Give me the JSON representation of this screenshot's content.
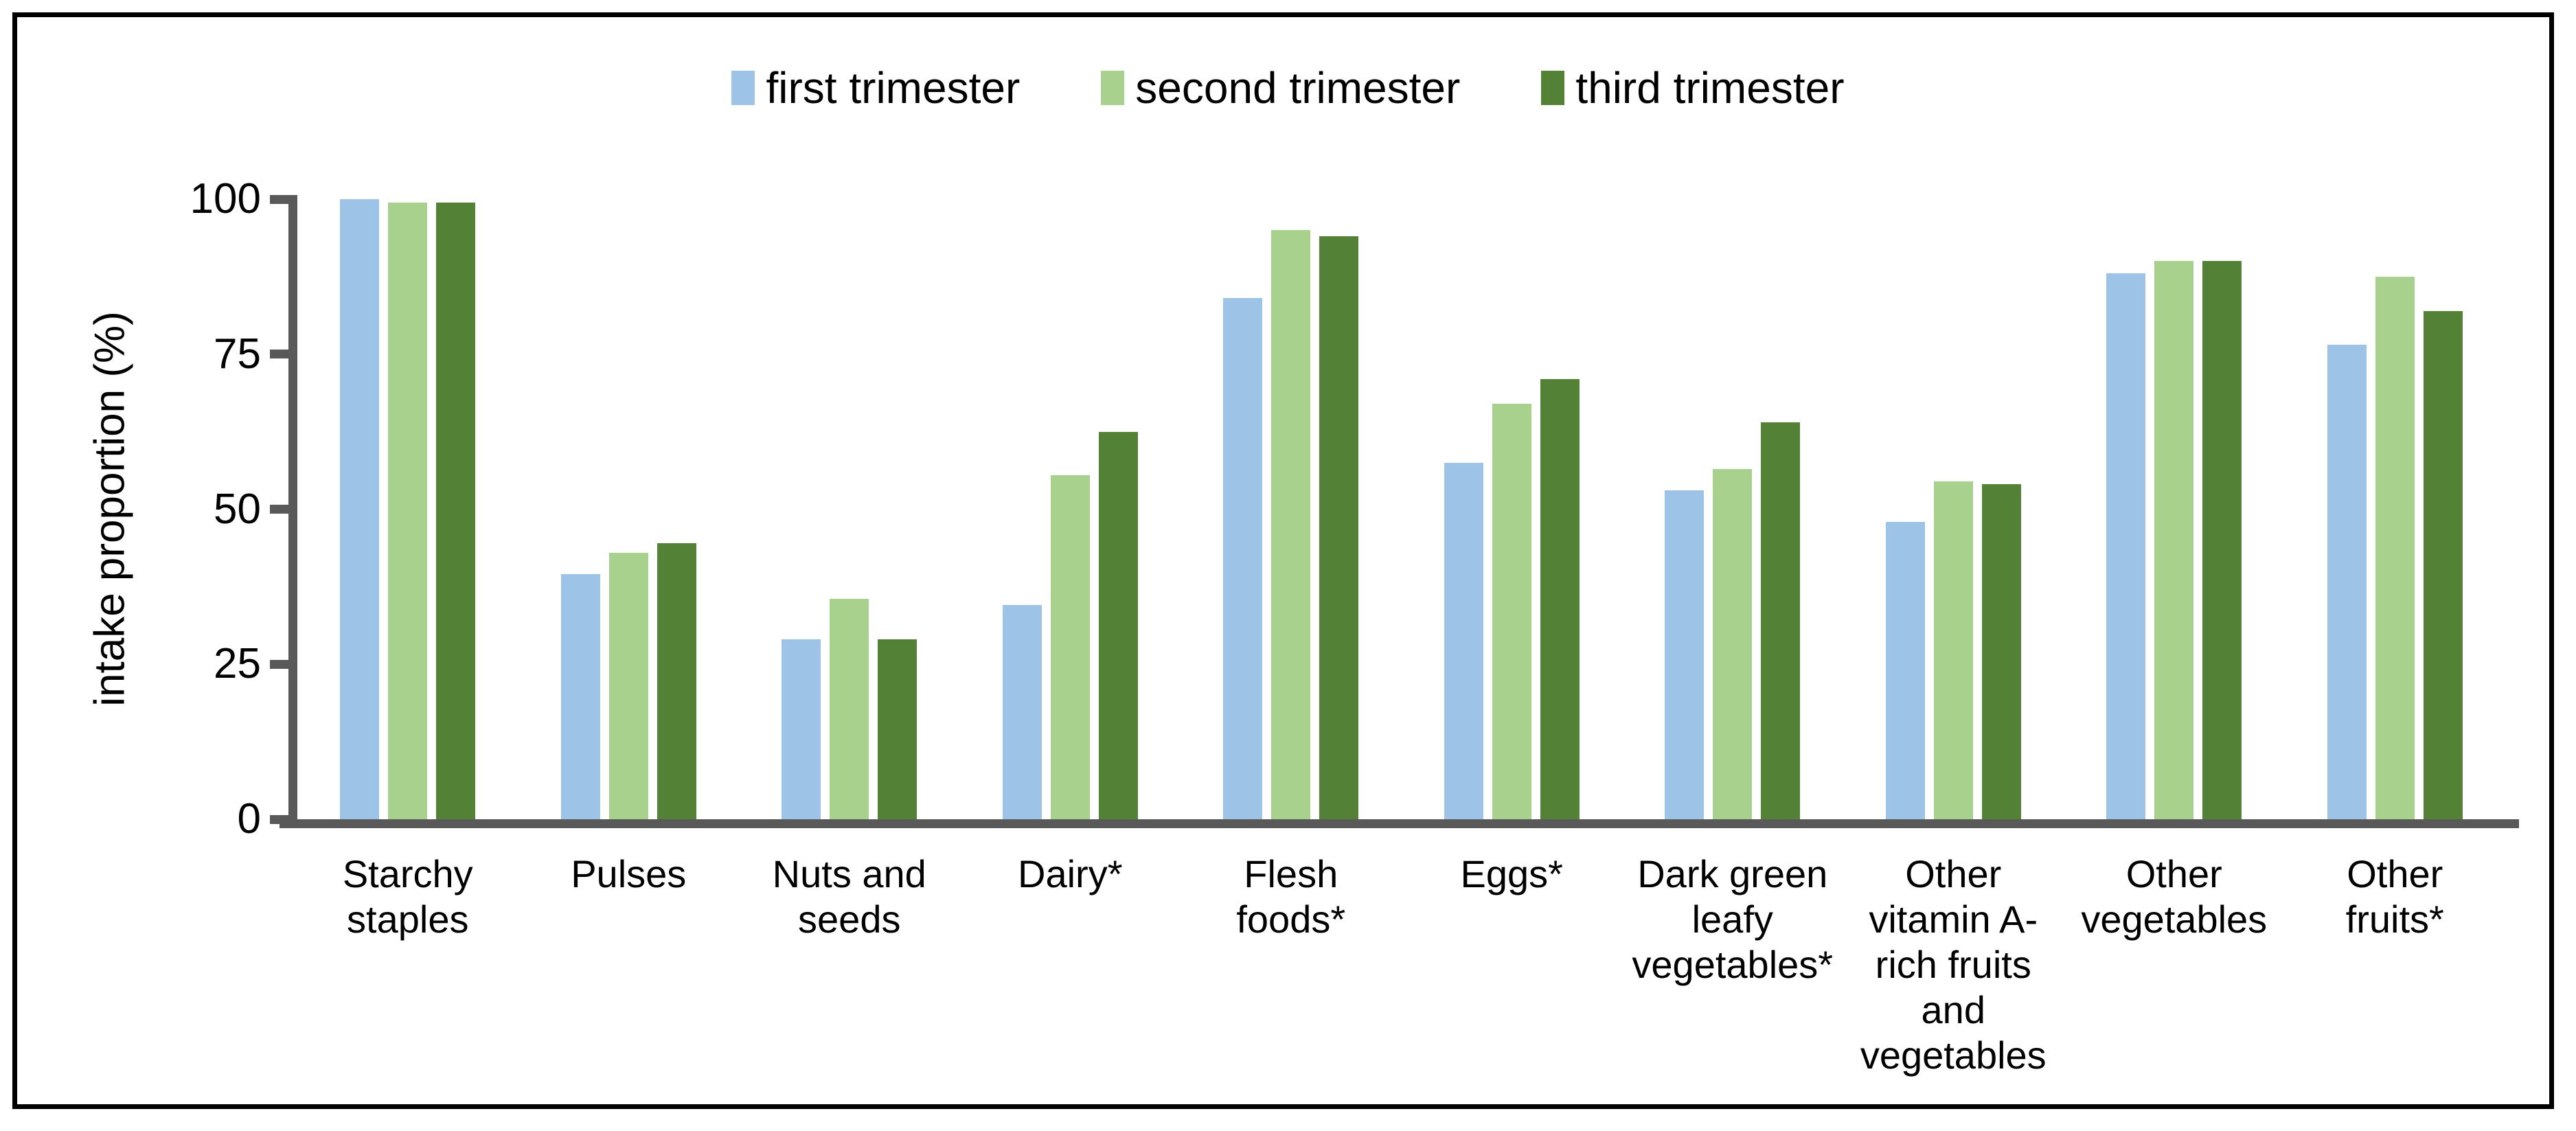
{
  "colors": {
    "background": "#ffffff",
    "border": "#000000",
    "axis": "#595959",
    "text": "#000000",
    "series_first": "#9DC3E6",
    "series_second": "#A9D18E",
    "series_third": "#538135"
  },
  "chart_data": {
    "type": "bar",
    "title": "",
    "xlabel": "",
    "ylabel": "intake proportion (%)",
    "ylim": [
      0,
      100
    ],
    "yticks": [
      0,
      25,
      50,
      75,
      100
    ],
    "grid": false,
    "legend_position": "top-center",
    "categories": [
      "Starchy\nstaples",
      "Pulses",
      "Nuts and\nseeds",
      "Dairy*",
      "Flesh\nfoods*",
      "Eggs*",
      "Dark green\nleafy\nvegetables*",
      "Other\nvitamin A-\nrich fruits\nand\nvegetables",
      "Other\nvegetables",
      "Other\nfruits*"
    ],
    "series": [
      {
        "name": "first trimester",
        "color": "#9DC3E6",
        "values": [
          100,
          39.5,
          29,
          34.5,
          84,
          57.5,
          53,
          48,
          88,
          76.5
        ]
      },
      {
        "name": "second trimester",
        "color": "#A9D18E",
        "values": [
          99.5,
          43,
          35.5,
          55.5,
          95,
          67,
          56.5,
          54.5,
          90,
          87.5
        ]
      },
      {
        "name": "third trimester",
        "color": "#538135",
        "values": [
          99.5,
          44.5,
          29,
          62.5,
          94,
          71,
          64,
          54,
          90,
          82
        ]
      }
    ]
  }
}
